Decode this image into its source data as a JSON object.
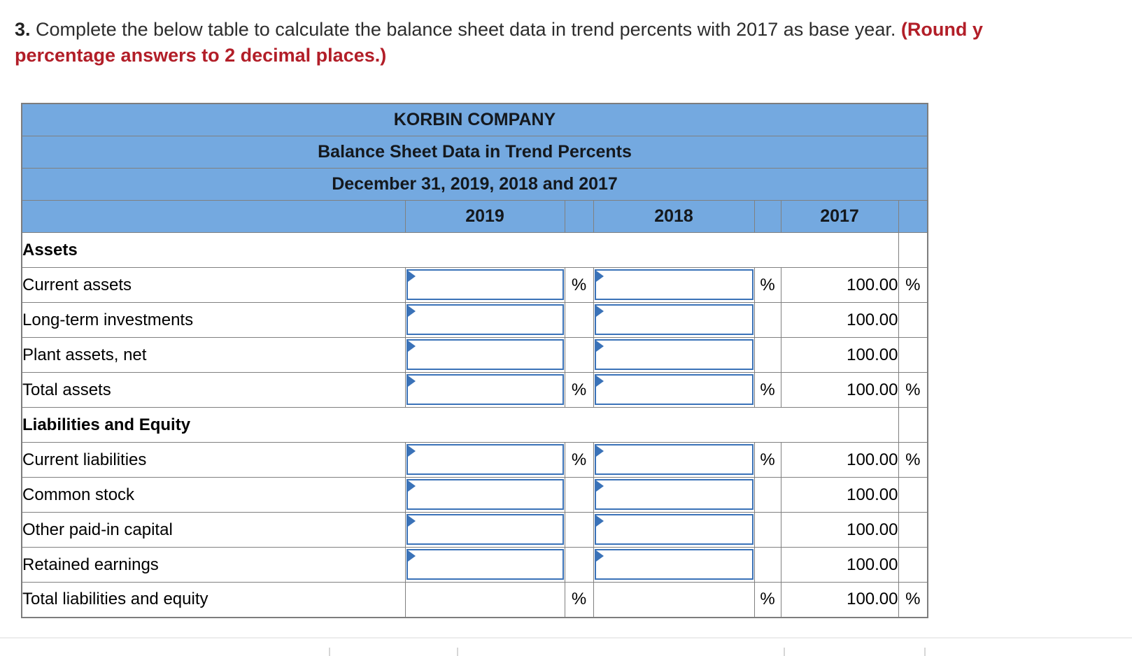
{
  "instruction": {
    "number": "3.",
    "body": "Complete the below table to calculate the balance sheet data in trend percents with 2017 as base year.",
    "note_part1": "(Round y",
    "note_line2": "percentage answers to 2 decimal places.)"
  },
  "table": {
    "titles": [
      "KORBIN COMPANY",
      "Balance Sheet Data in Trend Percents",
      "December 31, 2019, 2018 and 2017"
    ],
    "year_headers": [
      "2019",
      "2018",
      "2017"
    ],
    "rows": [
      {
        "kind": "section",
        "label": "Assets"
      },
      {
        "kind": "data",
        "label": "Current assets",
        "input2019": true,
        "input2018": true,
        "input_value_2019": "",
        "input_value_2018": "",
        "pct2019": "%",
        "pct2018": "%",
        "val2017": "100.00",
        "pct2017": "%",
        "total": false
      },
      {
        "kind": "data",
        "label": "Long-term investments",
        "input2019": true,
        "input2018": true,
        "input_value_2019": "",
        "input_value_2018": "",
        "pct2019": "",
        "pct2018": "",
        "val2017": "100.00",
        "pct2017": "",
        "total": false
      },
      {
        "kind": "data",
        "label": "Plant assets, net",
        "input2019": true,
        "input2018": true,
        "input_value_2019": "",
        "input_value_2018": "",
        "pct2019": "",
        "pct2018": "",
        "val2017": "100.00",
        "pct2017": "",
        "total": false
      },
      {
        "kind": "data",
        "label": "Total assets",
        "input2019": true,
        "input2018": true,
        "input_value_2019": "",
        "input_value_2018": "",
        "pct2019": "%",
        "pct2018": "%",
        "val2017": "100.00",
        "pct2017": "%",
        "total": true
      },
      {
        "kind": "section",
        "label": "Liabilities and Equity"
      },
      {
        "kind": "data",
        "label": "Current liabilities",
        "input2019": true,
        "input2018": true,
        "input_value_2019": "",
        "input_value_2018": "",
        "pct2019": "%",
        "pct2018": "%",
        "val2017": "100.00",
        "pct2017": "%",
        "total": false
      },
      {
        "kind": "data",
        "label": "Common stock",
        "input2019": true,
        "input2018": true,
        "input_value_2019": "",
        "input_value_2018": "",
        "pct2019": "",
        "pct2018": "",
        "val2017": "100.00",
        "pct2017": "",
        "total": false
      },
      {
        "kind": "data",
        "label": "Other paid-in capital",
        "input2019": true,
        "input2018": true,
        "input_value_2019": "",
        "input_value_2018": "",
        "pct2019": "",
        "pct2018": "",
        "val2017": "100.00",
        "pct2017": "",
        "total": false
      },
      {
        "kind": "data",
        "label": "Retained earnings",
        "input2019": true,
        "input2018": true,
        "input_value_2019": "",
        "input_value_2018": "",
        "pct2019": "",
        "pct2018": "",
        "val2017": "100.00",
        "pct2017": "",
        "total": false
      },
      {
        "kind": "data",
        "label": "Total liabilities and equity",
        "input2019": false,
        "input2018": false,
        "pct2019": "%",
        "pct2018": "%",
        "val2017": "100.00",
        "pct2017": "%",
        "total": true
      }
    ],
    "colors": {
      "header_blue": "#74A9E0",
      "grid_gray": "#808080",
      "input_border_blue": "#3A72B8",
      "note_red": "#B21E28",
      "total_border_black": "#000000"
    }
  }
}
